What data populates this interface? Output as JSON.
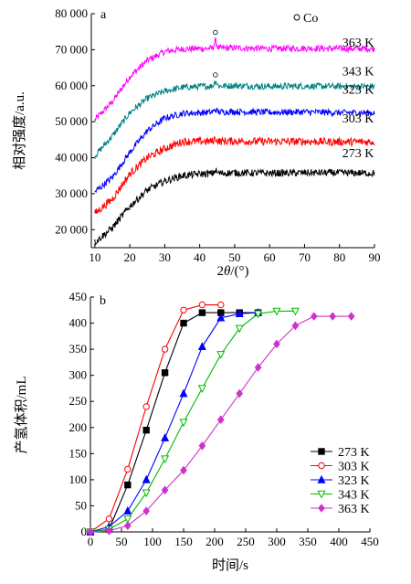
{
  "chart_data": [
    {
      "panel": "a",
      "type": "line",
      "xlabel_parts": [
        "2",
        "θ",
        "/(°)"
      ],
      "ylabel": "相对强度/a.u.",
      "xlim": [
        9,
        90
      ],
      "ylim": [
        15000,
        80000
      ],
      "xticks": [
        "10",
        "20",
        "30",
        "40",
        "50",
        "60",
        "70",
        "80",
        "90"
      ],
      "yticks": [
        "20 000",
        "30 000",
        "40 000",
        "50 000",
        "60 000",
        "70 000",
        "80 000"
      ],
      "legend_marker": "○",
      "legend_text": "Co",
      "grid": false,
      "series": [
        {
          "name": "363 K",
          "color": "#ff00ff",
          "baseline": 50500,
          "rise": 20000,
          "peak_x": 44.5,
          "peak_height": 2000,
          "noise": 900,
          "x": [
            10,
            15,
            20,
            25,
            30,
            35,
            40,
            50,
            60,
            70,
            80,
            90
          ],
          "y": [
            50500,
            55500,
            62500,
            67000,
            69500,
            70200,
            70300,
            70500,
            70300,
            70400,
            70300,
            70300
          ]
        },
        {
          "name": "343 K",
          "color": "#008080",
          "baseline": 40500,
          "rise": 19500,
          "peak_x": 44.5,
          "peak_height": 1500,
          "noise": 900,
          "x": [
            10,
            15,
            20,
            25,
            30,
            35,
            40,
            50,
            60,
            70,
            80,
            90
          ],
          "y": [
            40500,
            46000,
            52500,
            56500,
            58500,
            59500,
            59800,
            60000,
            59800,
            59900,
            59800,
            59800
          ]
        },
        {
          "name": "323 K",
          "color": "#0000ff",
          "baseline": 30500,
          "rise": 22000,
          "peak_x": 44.5,
          "peak_height": 800,
          "noise": 900,
          "x": [
            10,
            15,
            20,
            25,
            30,
            35,
            40,
            50,
            60,
            70,
            80,
            90
          ],
          "y": [
            30500,
            34500,
            41500,
            47500,
            51000,
            52300,
            52500,
            52800,
            52600,
            52700,
            52500,
            52500
          ]
        },
        {
          "name": "303 K",
          "color": "#ff0000",
          "baseline": 24500,
          "rise": 20000,
          "peak_x": 44.5,
          "peak_height": 800,
          "noise": 1100,
          "x": [
            10,
            15,
            20,
            25,
            30,
            35,
            40,
            50,
            60,
            70,
            80,
            90
          ],
          "y": [
            24500,
            28500,
            35500,
            40000,
            42500,
            44500,
            44500,
            44600,
            44500,
            44500,
            44400,
            44400
          ]
        },
        {
          "name": "273 K",
          "color": "#000000",
          "baseline": 16500,
          "rise": 19000,
          "peak_x": 44.5,
          "peak_height": 800,
          "noise": 1000,
          "x": [
            10,
            15,
            20,
            25,
            30,
            35,
            40,
            50,
            60,
            70,
            80,
            90
          ],
          "y": [
            16500,
            20500,
            26500,
            31000,
            33500,
            35000,
            35500,
            35800,
            35700,
            35800,
            35800,
            35700
          ]
        }
      ]
    },
    {
      "panel": "b",
      "type": "line",
      "xlabel": "时间/s",
      "ylabel": "产氢体积/mL",
      "xlim": [
        0,
        450
      ],
      "ylim": [
        0,
        450
      ],
      "xticks": [
        "0",
        "50",
        "100",
        "150",
        "200",
        "250",
        "300",
        "350",
        "400",
        "450"
      ],
      "yticks": [
        "0",
        "50",
        "100",
        "150",
        "200",
        "250",
        "300",
        "350",
        "400",
        "450"
      ],
      "legend_position": "bottom-right",
      "grid": false,
      "series": [
        {
          "name": "273 K",
          "color": "#000000",
          "marker": "square",
          "filled": true,
          "x": [
            0,
            30,
            60,
            90,
            120,
            150,
            180,
            210,
            240,
            270
          ],
          "y": [
            0,
            5,
            90,
            195,
            305,
            400,
            420,
            420,
            420,
            420
          ]
        },
        {
          "name": "303 K",
          "color": "#ff0000",
          "marker": "circle",
          "filled": false,
          "x": [
            0,
            30,
            60,
            90,
            120,
            150,
            180,
            210
          ],
          "y": [
            0,
            25,
            120,
            240,
            350,
            425,
            435,
            435
          ]
        },
        {
          "name": "323 K",
          "color": "#0000ff",
          "marker": "triangle",
          "filled": true,
          "x": [
            0,
            30,
            60,
            90,
            120,
            150,
            180,
            210,
            240,
            270
          ],
          "y": [
            0,
            10,
            40,
            100,
            180,
            265,
            355,
            410,
            418,
            420
          ]
        },
        {
          "name": "343 K",
          "color": "#00bb00",
          "marker": "triangle-down",
          "filled": false,
          "x": [
            0,
            30,
            60,
            90,
            120,
            150,
            180,
            210,
            240,
            270,
            300,
            330
          ],
          "y": [
            0,
            5,
            25,
            75,
            140,
            210,
            275,
            340,
            390,
            418,
            423,
            423
          ]
        },
        {
          "name": "363 K",
          "color": "#cc33cc",
          "marker": "diamond",
          "filled": true,
          "x": [
            0,
            30,
            60,
            90,
            120,
            150,
            180,
            210,
            240,
            270,
            300,
            330,
            360,
            390,
            420
          ],
          "y": [
            0,
            2,
            12,
            40,
            80,
            118,
            165,
            215,
            265,
            315,
            360,
            395,
            413,
            413,
            413
          ]
        }
      ]
    }
  ],
  "annotations": {
    "panel_a_label": "a",
    "panel_b_label": "b"
  }
}
